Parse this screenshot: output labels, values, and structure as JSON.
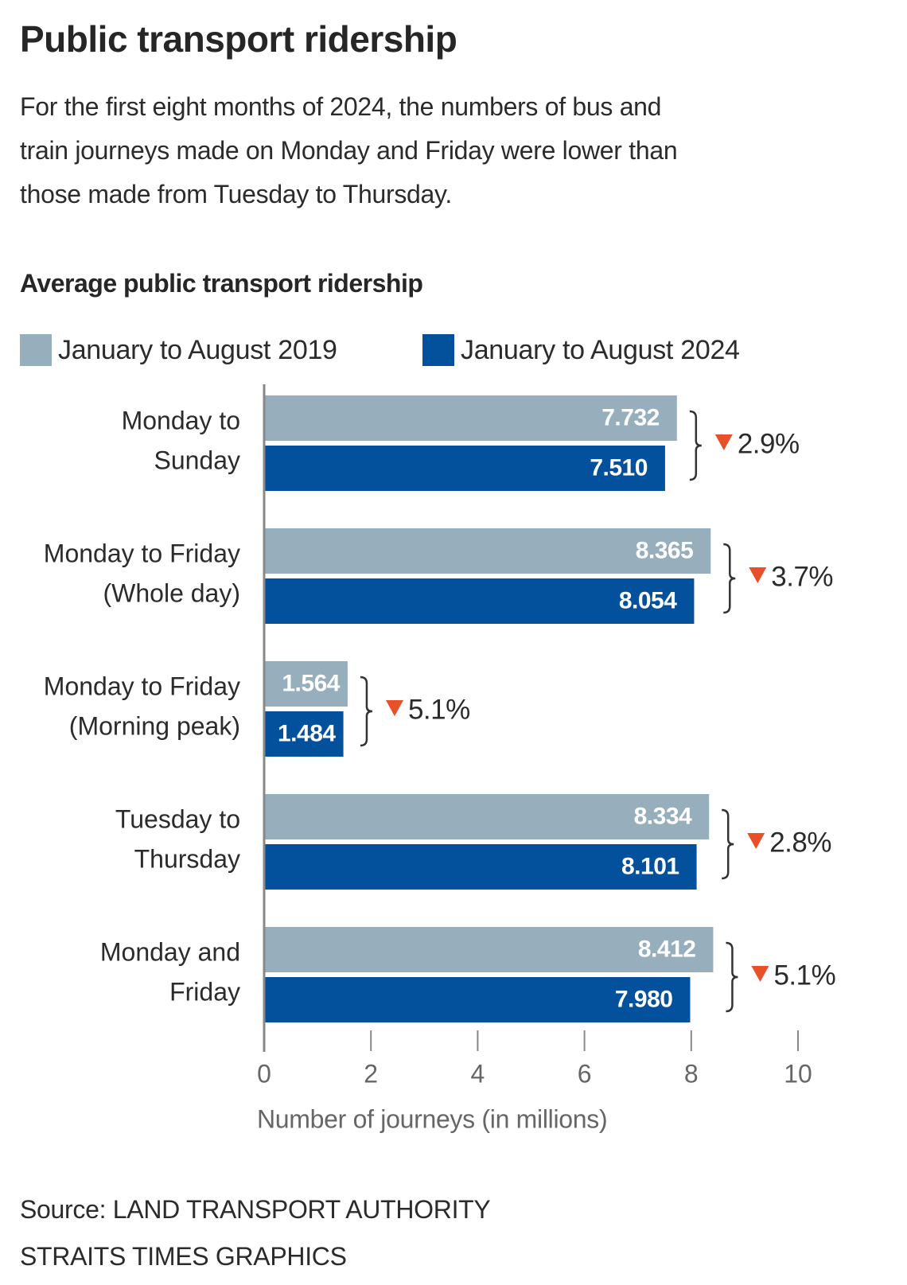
{
  "header": {
    "title": "Public transport ridership",
    "subtitle_lines": [
      "For the first eight months of 2024, the numbers of bus and",
      "train journeys made on Monday and Friday were lower than",
      "those made from Tuesday to Thursday."
    ]
  },
  "chart_data": {
    "type": "bar",
    "orientation": "horizontal",
    "title": "Average public transport ridership",
    "categories": [
      [
        "Monday to",
        "Sunday"
      ],
      [
        "Monday to Friday",
        "(Whole day)"
      ],
      [
        "Monday to Friday",
        "(Morning peak)"
      ],
      [
        "Tuesday to",
        "Thursday"
      ],
      [
        "Monday and",
        "Friday"
      ]
    ],
    "series": [
      {
        "name": "January to August 2019",
        "color": "#97afbd",
        "values": [
          7.732,
          8.365,
          1.564,
          8.334,
          8.412
        ],
        "labels": [
          "7.732",
          "8.365",
          "1.564",
          "8.334",
          "8.412"
        ]
      },
      {
        "name": "January to August 2024",
        "color": "#03519c",
        "values": [
          7.51,
          8.054,
          1.484,
          8.101,
          7.98
        ],
        "labels": [
          "7.510",
          "8.054",
          "1.484",
          "8.101",
          "7.980"
        ]
      }
    ],
    "changes": [
      "2.9%",
      "3.7%",
      "5.1%",
      "2.8%",
      "5.1%"
    ],
    "change_direction": "down",
    "change_color": "#e8502a",
    "xlabel": "Number of journeys (in millions)",
    "xlim": [
      0,
      10
    ],
    "xticks": [
      "0",
      "2",
      "4",
      "6",
      "8",
      "10"
    ],
    "legend": "top-left",
    "grid": false
  },
  "footer": {
    "source": "Source: LAND TRANSPORT AUTHORITY",
    "credit": "STRAITS TIMES GRAPHICS"
  }
}
